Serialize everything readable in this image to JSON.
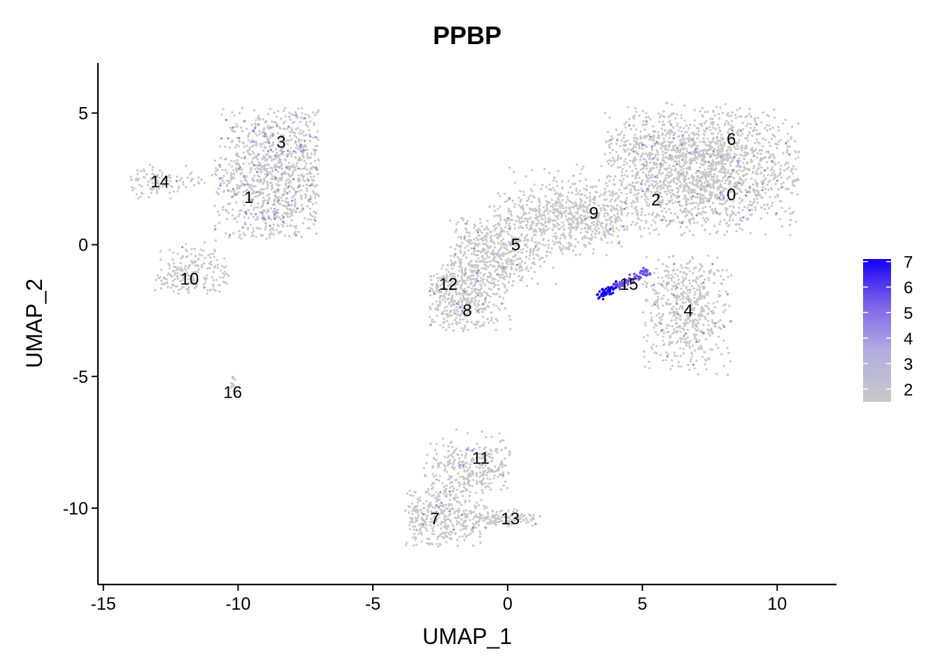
{
  "chart_data": {
    "type": "scatter",
    "title": "PPBP",
    "xlabel": "UMAP_1",
    "ylabel": "UMAP_2",
    "xlim": [
      -15.2,
      12.2
    ],
    "ylim": [
      -12.9,
      6.9
    ],
    "xticks": [
      -15,
      -10,
      -5,
      0,
      5,
      10
    ],
    "yticks": [
      -10,
      -5,
      0,
      5
    ],
    "xtick_labels": [
      "-15",
      "-10",
      "-5",
      "0",
      "5",
      "10"
    ],
    "ytick_labels": [
      "-10",
      "-5",
      "0",
      "5"
    ],
    "color_low": "#c8c8c8",
    "color_high": "#1400f5",
    "legend": {
      "position": "right",
      "min": 1.5,
      "max": 7.1,
      "ticks": [
        2,
        3,
        4,
        5,
        6,
        7
      ],
      "tick_labels": [
        "2",
        "3",
        "4",
        "5",
        "6",
        "7"
      ]
    },
    "clusters": [
      {
        "label": "0",
        "x": 8.3,
        "y": 1.9
      },
      {
        "label": "1",
        "x": -9.6,
        "y": 1.8
      },
      {
        "label": "2",
        "x": 5.5,
        "y": 1.7
      },
      {
        "label": "3",
        "x": -8.4,
        "y": 3.9
      },
      {
        "label": "4",
        "x": 6.7,
        "y": -2.5
      },
      {
        "label": "5",
        "x": 0.3,
        "y": 0.0
      },
      {
        "label": "6",
        "x": 8.3,
        "y": 4.0
      },
      {
        "label": "7",
        "x": -2.7,
        "y": -10.4
      },
      {
        "label": "8",
        "x": -1.5,
        "y": -2.5
      },
      {
        "label": "9",
        "x": 3.2,
        "y": 1.2
      },
      {
        "label": "10",
        "x": -11.8,
        "y": -1.3
      },
      {
        "label": "11",
        "x": -1.0,
        "y": -8.1
      },
      {
        "label": "12",
        "x": -2.2,
        "y": -1.5
      },
      {
        "label": "13",
        "x": 0.1,
        "y": -10.4
      },
      {
        "label": "14",
        "x": -12.9,
        "y": 2.4
      },
      {
        "label": "15",
        "x": 4.5,
        "y": -1.5
      },
      {
        "label": "16",
        "x": -10.2,
        "y": -5.6
      }
    ]
  }
}
